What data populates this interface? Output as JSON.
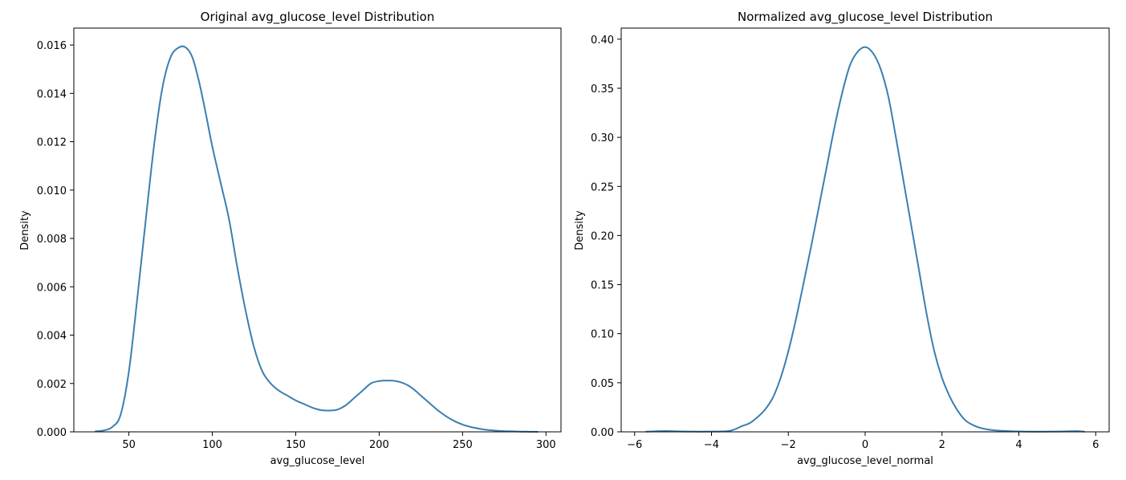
{
  "chart_data": [
    {
      "type": "line",
      "title": "Original avg_glucose_level Distribution",
      "xlabel": "avg_glucose_level",
      "ylabel": "Density",
      "xlim": [
        17,
        309
      ],
      "ylim": [
        0,
        0.0167
      ],
      "xticks": [
        50,
        100,
        150,
        200,
        250,
        300
      ],
      "xtick_labels": [
        "50",
        "100",
        "150",
        "200",
        "250",
        "300"
      ],
      "yticks": [
        0,
        0.002,
        0.004,
        0.006,
        0.008,
        0.01,
        0.012,
        0.014,
        0.016
      ],
      "ytick_labels": [
        "0.000",
        "0.002",
        "0.004",
        "0.006",
        "0.008",
        "0.010",
        "0.012",
        "0.014",
        "0.016"
      ],
      "grid": false,
      "series": [
        {
          "color": "#3a7fb0",
          "x": [
            30,
            35,
            40,
            45,
            50,
            55,
            60,
            65,
            70,
            75,
            80,
            84,
            88,
            92,
            96,
            100,
            105,
            110,
            115,
            120,
            125,
            130,
            135,
            140,
            145,
            150,
            155,
            160,
            165,
            170,
            175,
            180,
            185,
            190,
            195,
            200,
            205,
            210,
            215,
            220,
            225,
            230,
            235,
            240,
            245,
            250,
            255,
            260,
            265,
            270,
            275,
            280,
            285,
            290,
            295
          ],
          "y": [
            2e-05,
            6e-05,
            0.0002,
            0.0007,
            0.0025,
            0.0055,
            0.0087,
            0.0118,
            0.0142,
            0.0155,
            0.0159,
            0.0159,
            0.0155,
            0.0145,
            0.0132,
            0.0118,
            0.0103,
            0.0088,
            0.0068,
            0.005,
            0.0035,
            0.0025,
            0.002,
            0.0017,
            0.0015,
            0.0013,
            0.00115,
            0.001,
            0.0009,
            0.00088,
            0.00092,
            0.0011,
            0.0014,
            0.0017,
            0.002,
            0.0021,
            0.00212,
            0.0021,
            0.002,
            0.0018,
            0.0015,
            0.0012,
            0.0009,
            0.00065,
            0.00045,
            0.0003,
            0.0002,
            0.00013,
            8e-05,
            5e-05,
            3e-05,
            2e-05,
            1e-05,
            5e-06,
            2e-06
          ]
        }
      ]
    },
    {
      "type": "line",
      "title": "Normalized avg_glucose_level Distribution",
      "xlabel": "avg_glucose_level_normal",
      "ylabel": "Density",
      "xlim": [
        -6.35,
        6.35
      ],
      "ylim": [
        0,
        0.4113
      ],
      "xticks": [
        -6,
        -4,
        -2,
        0,
        2,
        4,
        6
      ],
      "xtick_labels": [
        "−6",
        "−4",
        "−2",
        "0",
        "2",
        "4",
        "6"
      ],
      "yticks": [
        0,
        0.05,
        0.1,
        0.15,
        0.2,
        0.25,
        0.3,
        0.35,
        0.4
      ],
      "ytick_labels": [
        "0.00",
        "0.05",
        "0.10",
        "0.15",
        "0.20",
        "0.25",
        "0.30",
        "0.35",
        "0.40"
      ],
      "grid": false,
      "series": [
        {
          "color": "#3a7fb0",
          "x": [
            -5.7,
            -5.2,
            -4.6,
            -4,
            -3.6,
            -3.4,
            -3.2,
            -3,
            -2.8,
            -2.6,
            -2.4,
            -2.2,
            -2,
            -1.8,
            -1.6,
            -1.4,
            -1.2,
            -1,
            -0.8,
            -0.6,
            -0.4,
            -0.2,
            0,
            0.2,
            0.4,
            0.6,
            0.8,
            1,
            1.2,
            1.4,
            1.6,
            1.8,
            2,
            2.2,
            2.4,
            2.6,
            2.8,
            3,
            3.3,
            3.6,
            4,
            4.5,
            5,
            5.5,
            5.7
          ],
          "y": [
            0.0002,
            0.0008,
            0.0003,
            0.0003,
            0.0006,
            0.0025,
            0.006,
            0.009,
            0.015,
            0.023,
            0.035,
            0.055,
            0.082,
            0.115,
            0.152,
            0.19,
            0.23,
            0.27,
            0.31,
            0.345,
            0.373,
            0.387,
            0.392,
            0.386,
            0.37,
            0.342,
            0.3,
            0.255,
            0.21,
            0.165,
            0.12,
            0.082,
            0.055,
            0.036,
            0.022,
            0.012,
            0.007,
            0.004,
            0.0018,
            0.001,
            0.0004,
            0.0002,
            0.0003,
            0.0007,
            0.0002
          ]
        }
      ]
    }
  ]
}
